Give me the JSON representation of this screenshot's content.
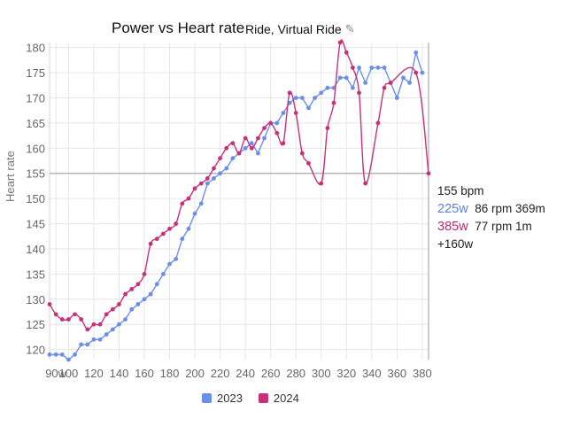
{
  "header": {
    "title": "Power vs Heart rate",
    "subtitle": "Ride, Virtual Ride",
    "edit_icon": "pencil-icon"
  },
  "colors": {
    "series_2023": "#6b8ee8",
    "series_2024": "#c9307a",
    "crosshair": "#999999",
    "grid": "#e6e6e6"
  },
  "readout": {
    "bpm": "155 bpm",
    "row_2023": {
      "watts": "225w",
      "detail": "86 rpm 369m"
    },
    "row_2024": {
      "watts": "385w",
      "detail": "77 rpm 1m"
    },
    "delta": "+160w"
  },
  "chart_data": {
    "type": "line",
    "title": "Power vs Heart rate",
    "subtitle": "Ride, Virtual Ride",
    "xlabel": "",
    "ylabel": "Heart rate",
    "xlim": [
      85,
      385
    ],
    "ylim": [
      118,
      181
    ],
    "x_ticks": [
      "90w",
      "100",
      "120",
      "140",
      "160",
      "180",
      "200",
      "220",
      "240",
      "260",
      "280",
      "300",
      "320",
      "340",
      "360",
      "380"
    ],
    "x_tick_values": [
      90,
      100,
      120,
      140,
      160,
      180,
      200,
      220,
      240,
      260,
      280,
      300,
      320,
      340,
      360,
      380
    ],
    "y_ticks": [
      120,
      125,
      130,
      135,
      140,
      145,
      150,
      155,
      160,
      165,
      170,
      175,
      180
    ],
    "crosshair": {
      "x": 385,
      "y": 155
    },
    "legend_position": "bottom",
    "grid": true,
    "series": [
      {
        "name": "2023",
        "smooth": false,
        "points": [
          [
            85,
            119
          ],
          [
            90,
            119
          ],
          [
            95,
            119
          ],
          [
            100,
            118
          ],
          [
            105,
            119
          ],
          [
            110,
            121
          ],
          [
            115,
            121
          ],
          [
            120,
            122
          ],
          [
            125,
            122
          ],
          [
            130,
            123
          ],
          [
            135,
            124
          ],
          [
            140,
            125
          ],
          [
            145,
            126
          ],
          [
            150,
            128
          ],
          [
            155,
            129
          ],
          [
            160,
            130
          ],
          [
            165,
            131
          ],
          [
            170,
            133
          ],
          [
            175,
            135
          ],
          [
            180,
            137
          ],
          [
            185,
            138
          ],
          [
            190,
            142
          ],
          [
            195,
            144
          ],
          [
            200,
            147
          ],
          [
            205,
            149
          ],
          [
            210,
            153
          ],
          [
            215,
            154
          ],
          [
            220,
            155
          ],
          [
            225,
            156
          ],
          [
            230,
            158
          ],
          [
            235,
            159
          ],
          [
            240,
            160
          ],
          [
            245,
            161
          ],
          [
            250,
            159
          ],
          [
            255,
            162
          ],
          [
            260,
            165
          ],
          [
            265,
            165
          ],
          [
            270,
            167
          ],
          [
            275,
            169
          ],
          [
            280,
            170
          ],
          [
            285,
            170
          ],
          [
            290,
            168
          ],
          [
            295,
            170
          ],
          [
            300,
            171
          ],
          [
            305,
            172
          ],
          [
            310,
            172
          ],
          [
            315,
            174
          ],
          [
            320,
            174
          ],
          [
            325,
            172
          ],
          [
            330,
            176
          ],
          [
            335,
            173
          ],
          [
            340,
            176
          ],
          [
            345,
            176
          ],
          [
            350,
            176
          ],
          [
            355,
            173
          ],
          [
            360,
            170
          ],
          [
            365,
            174
          ],
          [
            370,
            173
          ],
          [
            375,
            179
          ],
          [
            380,
            175
          ]
        ]
      },
      {
        "name": "2024",
        "smooth": true,
        "points": [
          [
            85,
            129
          ],
          [
            90,
            127
          ],
          [
            95,
            126
          ],
          [
            100,
            126
          ],
          [
            105,
            127
          ],
          [
            110,
            126
          ],
          [
            115,
            124
          ],
          [
            120,
            125
          ],
          [
            125,
            125
          ],
          [
            130,
            127
          ],
          [
            135,
            128
          ],
          [
            140,
            129
          ],
          [
            145,
            131
          ],
          [
            150,
            132
          ],
          [
            155,
            133
          ],
          [
            160,
            135
          ],
          [
            165,
            141
          ],
          [
            170,
            142
          ],
          [
            175,
            143
          ],
          [
            180,
            144
          ],
          [
            185,
            145
          ],
          [
            190,
            149
          ],
          [
            195,
            150
          ],
          [
            200,
            152
          ],
          [
            205,
            153
          ],
          [
            210,
            154
          ],
          [
            215,
            156
          ],
          [
            220,
            158
          ],
          [
            225,
            160
          ],
          [
            230,
            161
          ],
          [
            235,
            159
          ],
          [
            240,
            162
          ],
          [
            245,
            160
          ],
          [
            250,
            162
          ],
          [
            255,
            164
          ],
          [
            260,
            165
          ],
          [
            265,
            163
          ],
          [
            270,
            161
          ],
          [
            275,
            171
          ],
          [
            280,
            167
          ],
          [
            285,
            159
          ],
          [
            290,
            157
          ],
          [
            300,
            153
          ],
          [
            305,
            164
          ],
          [
            310,
            169
          ],
          [
            315,
            181
          ],
          [
            320,
            179
          ],
          [
            325,
            176
          ],
          [
            330,
            171
          ],
          [
            335,
            153
          ],
          [
            345,
            165
          ],
          [
            350,
            172
          ],
          [
            355,
            173
          ],
          [
            375,
            175
          ],
          [
            385,
            155
          ]
        ]
      }
    ]
  },
  "legend": {
    "items": [
      {
        "label": "2023"
      },
      {
        "label": "2024"
      }
    ]
  }
}
